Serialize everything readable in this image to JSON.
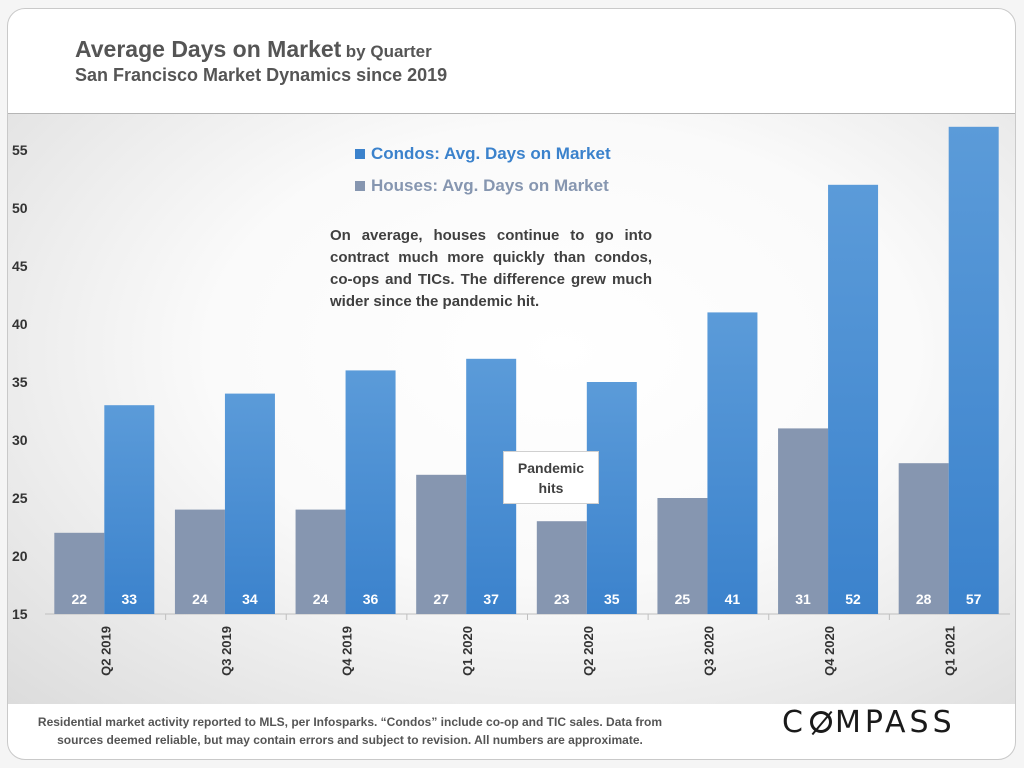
{
  "header": {
    "title": "Average Days on Market",
    "title_suffix": "by Quarter",
    "subtitle": "San Francisco Market Dynamics since 2019"
  },
  "legend": {
    "condos": "Condos: Avg. Days on Market",
    "houses": "Houses: Avg. Days on Market"
  },
  "annotation": "On average, houses continue to go into contract much more quickly than condos, co-ops and TICs. The difference grew much wider since the pandemic hit.",
  "pandemic_label": "Pandemic hits",
  "footer": {
    "note": "Residential market activity reported to MLS, per Infosparks. “Condos” include co-op and TIC sales. Data from sources deemed reliable, but may contain errors and subject to revision. All numbers are approximate.",
    "logo": "COMPASS"
  },
  "colors": {
    "condos": "#3b82cc",
    "houses": "#8696b0",
    "bar_label": "#ffffff"
  },
  "chart_data": {
    "type": "bar",
    "categories": [
      "Q2 2019",
      "Q3 2019",
      "Q4 2019",
      "Q1 2020",
      "Q2 2020",
      "Q3 2020",
      "Q4 2020",
      "Q1 2021"
    ],
    "series": [
      {
        "name": "Houses: Avg. Days on Market",
        "values": [
          22,
          24,
          24,
          27,
          23,
          25,
          31,
          28
        ]
      },
      {
        "name": "Condos: Avg. Days on Market",
        "values": [
          33,
          34,
          36,
          37,
          35,
          41,
          52,
          57
        ]
      }
    ],
    "ylim": [
      15,
      57
    ],
    "yticks": [
      15,
      20,
      25,
      30,
      35,
      40,
      45,
      50,
      55
    ],
    "data_labels": true,
    "legend_position": "top-center"
  }
}
